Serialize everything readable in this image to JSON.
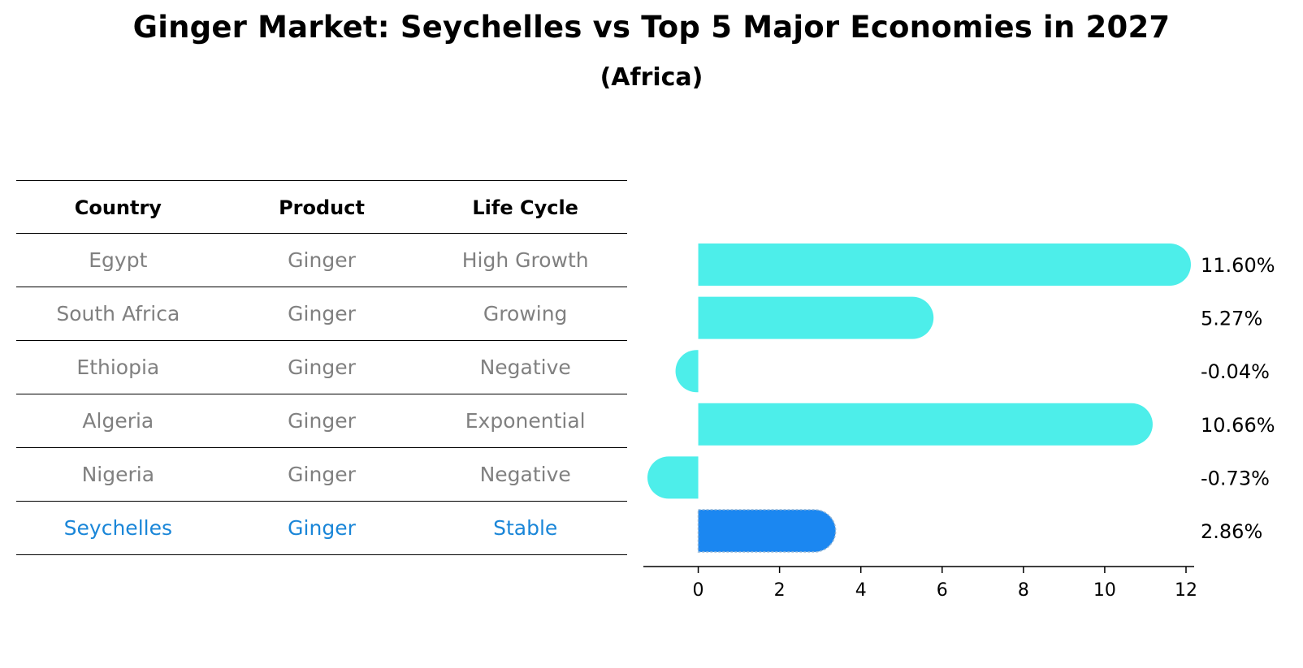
{
  "title": "Ginger Market: Seychelles vs Top 5 Major Economies in 2027",
  "subtitle": "(Africa)",
  "table": {
    "headers": [
      "Country",
      "Product",
      "Life Cycle"
    ],
    "rows": [
      [
        "Egypt",
        "Ginger",
        "High Growth"
      ],
      [
        "South Africa",
        "Ginger",
        "Growing"
      ],
      [
        "Ethiopia",
        "Ginger",
        "Negative"
      ],
      [
        "Algeria",
        "Ginger",
        "Exponential"
      ],
      [
        "Nigeria",
        "Ginger",
        "Negative"
      ],
      [
        "Seychelles",
        "Ginger",
        "Stable"
      ]
    ],
    "highlight_row": 5
  },
  "chart_data": {
    "type": "bar",
    "orientation": "horizontal",
    "categories": [
      "Egypt",
      "South Africa",
      "Ethiopia",
      "Algeria",
      "Nigeria",
      "Seychelles"
    ],
    "values": [
      11.6,
      5.27,
      -0.04,
      10.66,
      -0.73,
      2.86
    ],
    "value_labels": [
      "11.60%",
      "5.27%",
      "-0.04%",
      "10.66%",
      "-0.73%",
      "2.86%"
    ],
    "xlim": [
      -1.35,
      12.2
    ],
    "xticks": [
      0,
      2,
      4,
      6,
      8,
      10,
      12
    ],
    "grid": false,
    "colors": {
      "bar": "#4deeea",
      "highlight": "#1b87f1",
      "axis": "#000000"
    },
    "highlight_index": 5
  }
}
